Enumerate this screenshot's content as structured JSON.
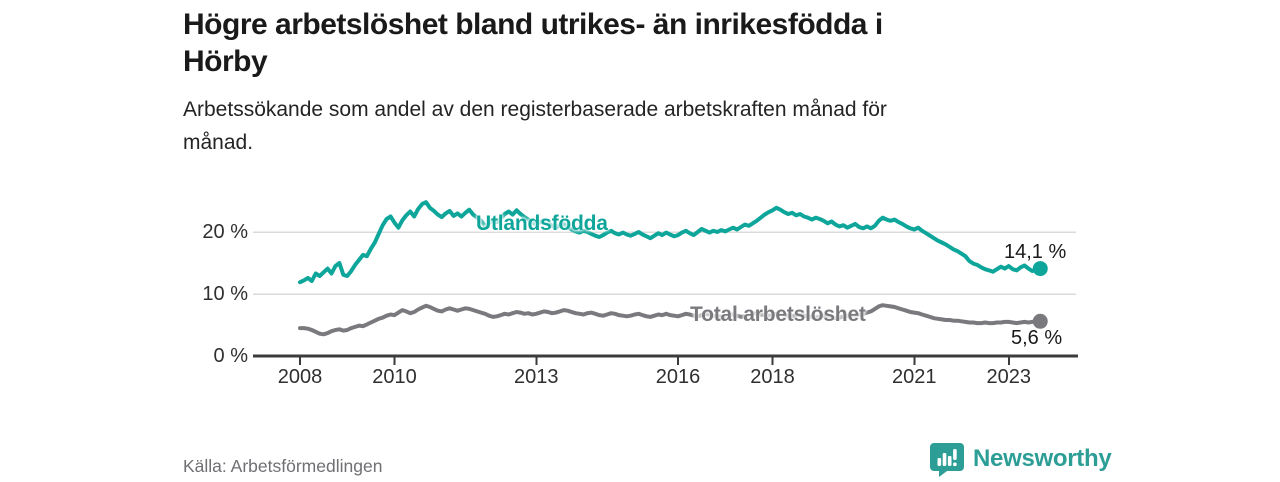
{
  "header": {
    "title_lines": [
      "Högre arbetslöshet bland utrikes- än inrikesfödda i",
      "Hörby"
    ],
    "subtitle_lines": [
      "Arbetssökande som andel av den registerbaserade arbetskraften månad för",
      "månad."
    ]
  },
  "footer": {
    "source": "Källa: Arbetsförmedlingen",
    "brand_name": "Newsworthy"
  },
  "colors": {
    "teal_line": "#0EA69A",
    "gray_line": "#7A797E",
    "gridline": "#DBDBDB",
    "axis": "#3B3B3B",
    "brand_teal": "#2D9E96"
  },
  "chart_data": {
    "type": "line",
    "title": "Högre arbetslöshet bland utrikes- än inrikesfödda i Hörby",
    "subtitle": "Arbetssökande som andel av den registerbaserade arbetskraften månad för månad.",
    "x_unit": "year-month (monthly series starting 2008-01, ending 2023-09)",
    "y_unit": "percent",
    "ylim": [
      0,
      26
    ],
    "xlim": [
      2007.0,
      2024.5
    ],
    "grid": "horizontal-only",
    "legend_position": "inline-labels-on-lines",
    "y_ticks": [
      {
        "label": "0 %",
        "value": 0
      },
      {
        "label": "10 %",
        "value": 10
      },
      {
        "label": "20 %",
        "value": 20
      }
    ],
    "x_ticks": [
      {
        "label": "2008",
        "year": 2008
      },
      {
        "label": "2010",
        "year": 2010
      },
      {
        "label": "2013",
        "year": 2013
      },
      {
        "label": "2016",
        "year": 2016
      },
      {
        "label": "2018",
        "year": 2018
      },
      {
        "label": "2021",
        "year": 2021
      },
      {
        "label": "2023",
        "year": 2023
      }
    ],
    "x_start_year": 2008.0,
    "x_step_years": 0.0833333,
    "series": [
      {
        "name": "Utlandsfödda",
        "color": "#0EA69A",
        "end_label": "14,1 %",
        "end_value": 14.1,
        "values": [
          11.9,
          12.2,
          12.6,
          12.1,
          13.3,
          12.9,
          13.5,
          14.1,
          13.3,
          14.5,
          15.0,
          13.1,
          12.9,
          13.7,
          14.7,
          15.5,
          16.3,
          16.1,
          17.3,
          18.3,
          19.7,
          21.1,
          22.1,
          22.5,
          21.5,
          20.7,
          21.9,
          22.7,
          23.3,
          22.5,
          23.7,
          24.5,
          24.8,
          23.9,
          23.4,
          22.8,
          22.4,
          23.0,
          23.4,
          22.6,
          23.0,
          22.5,
          23.1,
          23.6,
          22.8,
          22.3,
          21.8,
          20.9,
          21.4,
          22.0,
          21.6,
          22.2,
          22.9,
          23.3,
          22.8,
          23.5,
          22.9,
          22.4,
          22.0,
          21.6,
          21.2,
          21.6,
          21.9,
          21.4,
          21.0,
          20.7,
          21.1,
          21.3,
          20.8,
          20.4,
          20.1,
          19.9,
          20.2,
          20.0,
          19.7,
          19.4,
          19.2,
          19.5,
          19.9,
          20.2,
          19.8,
          19.6,
          19.9,
          19.6,
          19.4,
          19.7,
          20.0,
          19.6,
          19.3,
          19.0,
          19.4,
          19.8,
          19.5,
          19.9,
          19.6,
          19.3,
          19.5,
          19.9,
          20.2,
          19.8,
          19.5,
          20.0,
          20.5,
          20.2,
          19.9,
          20.2,
          20.0,
          20.3,
          20.1,
          20.4,
          20.7,
          20.4,
          20.8,
          21.2,
          21.0,
          21.4,
          21.8,
          22.3,
          22.8,
          23.2,
          23.5,
          23.9,
          23.6,
          23.2,
          22.9,
          23.1,
          22.7,
          22.9,
          22.5,
          22.3,
          22.0,
          22.3,
          22.1,
          21.8,
          21.4,
          21.7,
          21.2,
          20.9,
          21.1,
          20.7,
          21.0,
          21.3,
          20.8,
          20.6,
          20.9,
          20.6,
          21.0,
          21.8,
          22.3,
          22.0,
          21.8,
          22.0,
          21.6,
          21.3,
          20.9,
          20.6,
          20.4,
          20.7,
          20.2,
          19.8,
          19.4,
          19.0,
          18.6,
          18.3,
          18.0,
          17.6,
          17.2,
          16.9,
          16.5,
          16.1,
          15.3,
          14.9,
          14.7,
          14.3,
          14.0,
          13.8,
          13.6,
          14.0,
          14.4,
          14.1,
          14.5,
          14.0,
          13.8,
          14.3,
          14.6,
          14.1,
          13.7,
          14.0,
          14.1
        ]
      },
      {
        "name": "Total arbetslöshet",
        "color": "#7A797E",
        "end_label": "5,6 %",
        "end_value": 5.6,
        "values": [
          4.5,
          4.5,
          4.4,
          4.2,
          3.9,
          3.6,
          3.5,
          3.7,
          4.0,
          4.2,
          4.3,
          4.1,
          4.2,
          4.5,
          4.7,
          4.9,
          4.8,
          5.1,
          5.4,
          5.7,
          6.0,
          6.2,
          6.5,
          6.7,
          6.6,
          7.0,
          7.4,
          7.2,
          6.9,
          7.1,
          7.5,
          7.8,
          8.1,
          7.9,
          7.6,
          7.3,
          7.2,
          7.5,
          7.7,
          7.5,
          7.3,
          7.5,
          7.7,
          7.6,
          7.4,
          7.2,
          7.0,
          6.8,
          6.5,
          6.3,
          6.4,
          6.6,
          6.8,
          6.7,
          6.9,
          7.1,
          7.0,
          6.8,
          6.9,
          6.7,
          6.8,
          7.0,
          7.2,
          7.1,
          6.9,
          7.0,
          7.2,
          7.4,
          7.3,
          7.1,
          6.9,
          6.8,
          6.7,
          6.9,
          7.0,
          6.8,
          6.6,
          6.5,
          6.7,
          6.9,
          6.8,
          6.6,
          6.5,
          6.4,
          6.5,
          6.7,
          6.8,
          6.6,
          6.4,
          6.3,
          6.5,
          6.7,
          6.6,
          6.8,
          6.6,
          6.5,
          6.4,
          6.6,
          6.8,
          6.7,
          6.5,
          6.4,
          6.6,
          6.8,
          6.7,
          6.5,
          6.4,
          6.3,
          6.4,
          6.6,
          6.7,
          6.5,
          6.3,
          6.4,
          6.6,
          6.8,
          6.9,
          6.7,
          6.6,
          6.5,
          6.6,
          6.8,
          6.9,
          6.7,
          6.5,
          6.4,
          6.6,
          6.7,
          6.5,
          6.4,
          6.3,
          6.2,
          6.3,
          6.5,
          6.4,
          6.2,
          6.1,
          6.2,
          6.4,
          6.5,
          6.4,
          6.6,
          6.7,
          6.8,
          7.0,
          7.2,
          7.6,
          8.0,
          8.2,
          8.1,
          8.0,
          7.9,
          7.7,
          7.5,
          7.3,
          7.1,
          7.0,
          6.9,
          6.7,
          6.5,
          6.3,
          6.1,
          6.0,
          5.9,
          5.8,
          5.8,
          5.7,
          5.7,
          5.6,
          5.5,
          5.4,
          5.4,
          5.3,
          5.3,
          5.4,
          5.3,
          5.3,
          5.4,
          5.4,
          5.5,
          5.5,
          5.4,
          5.3,
          5.4,
          5.5,
          5.4,
          5.5,
          5.6,
          5.6
        ]
      }
    ]
  }
}
